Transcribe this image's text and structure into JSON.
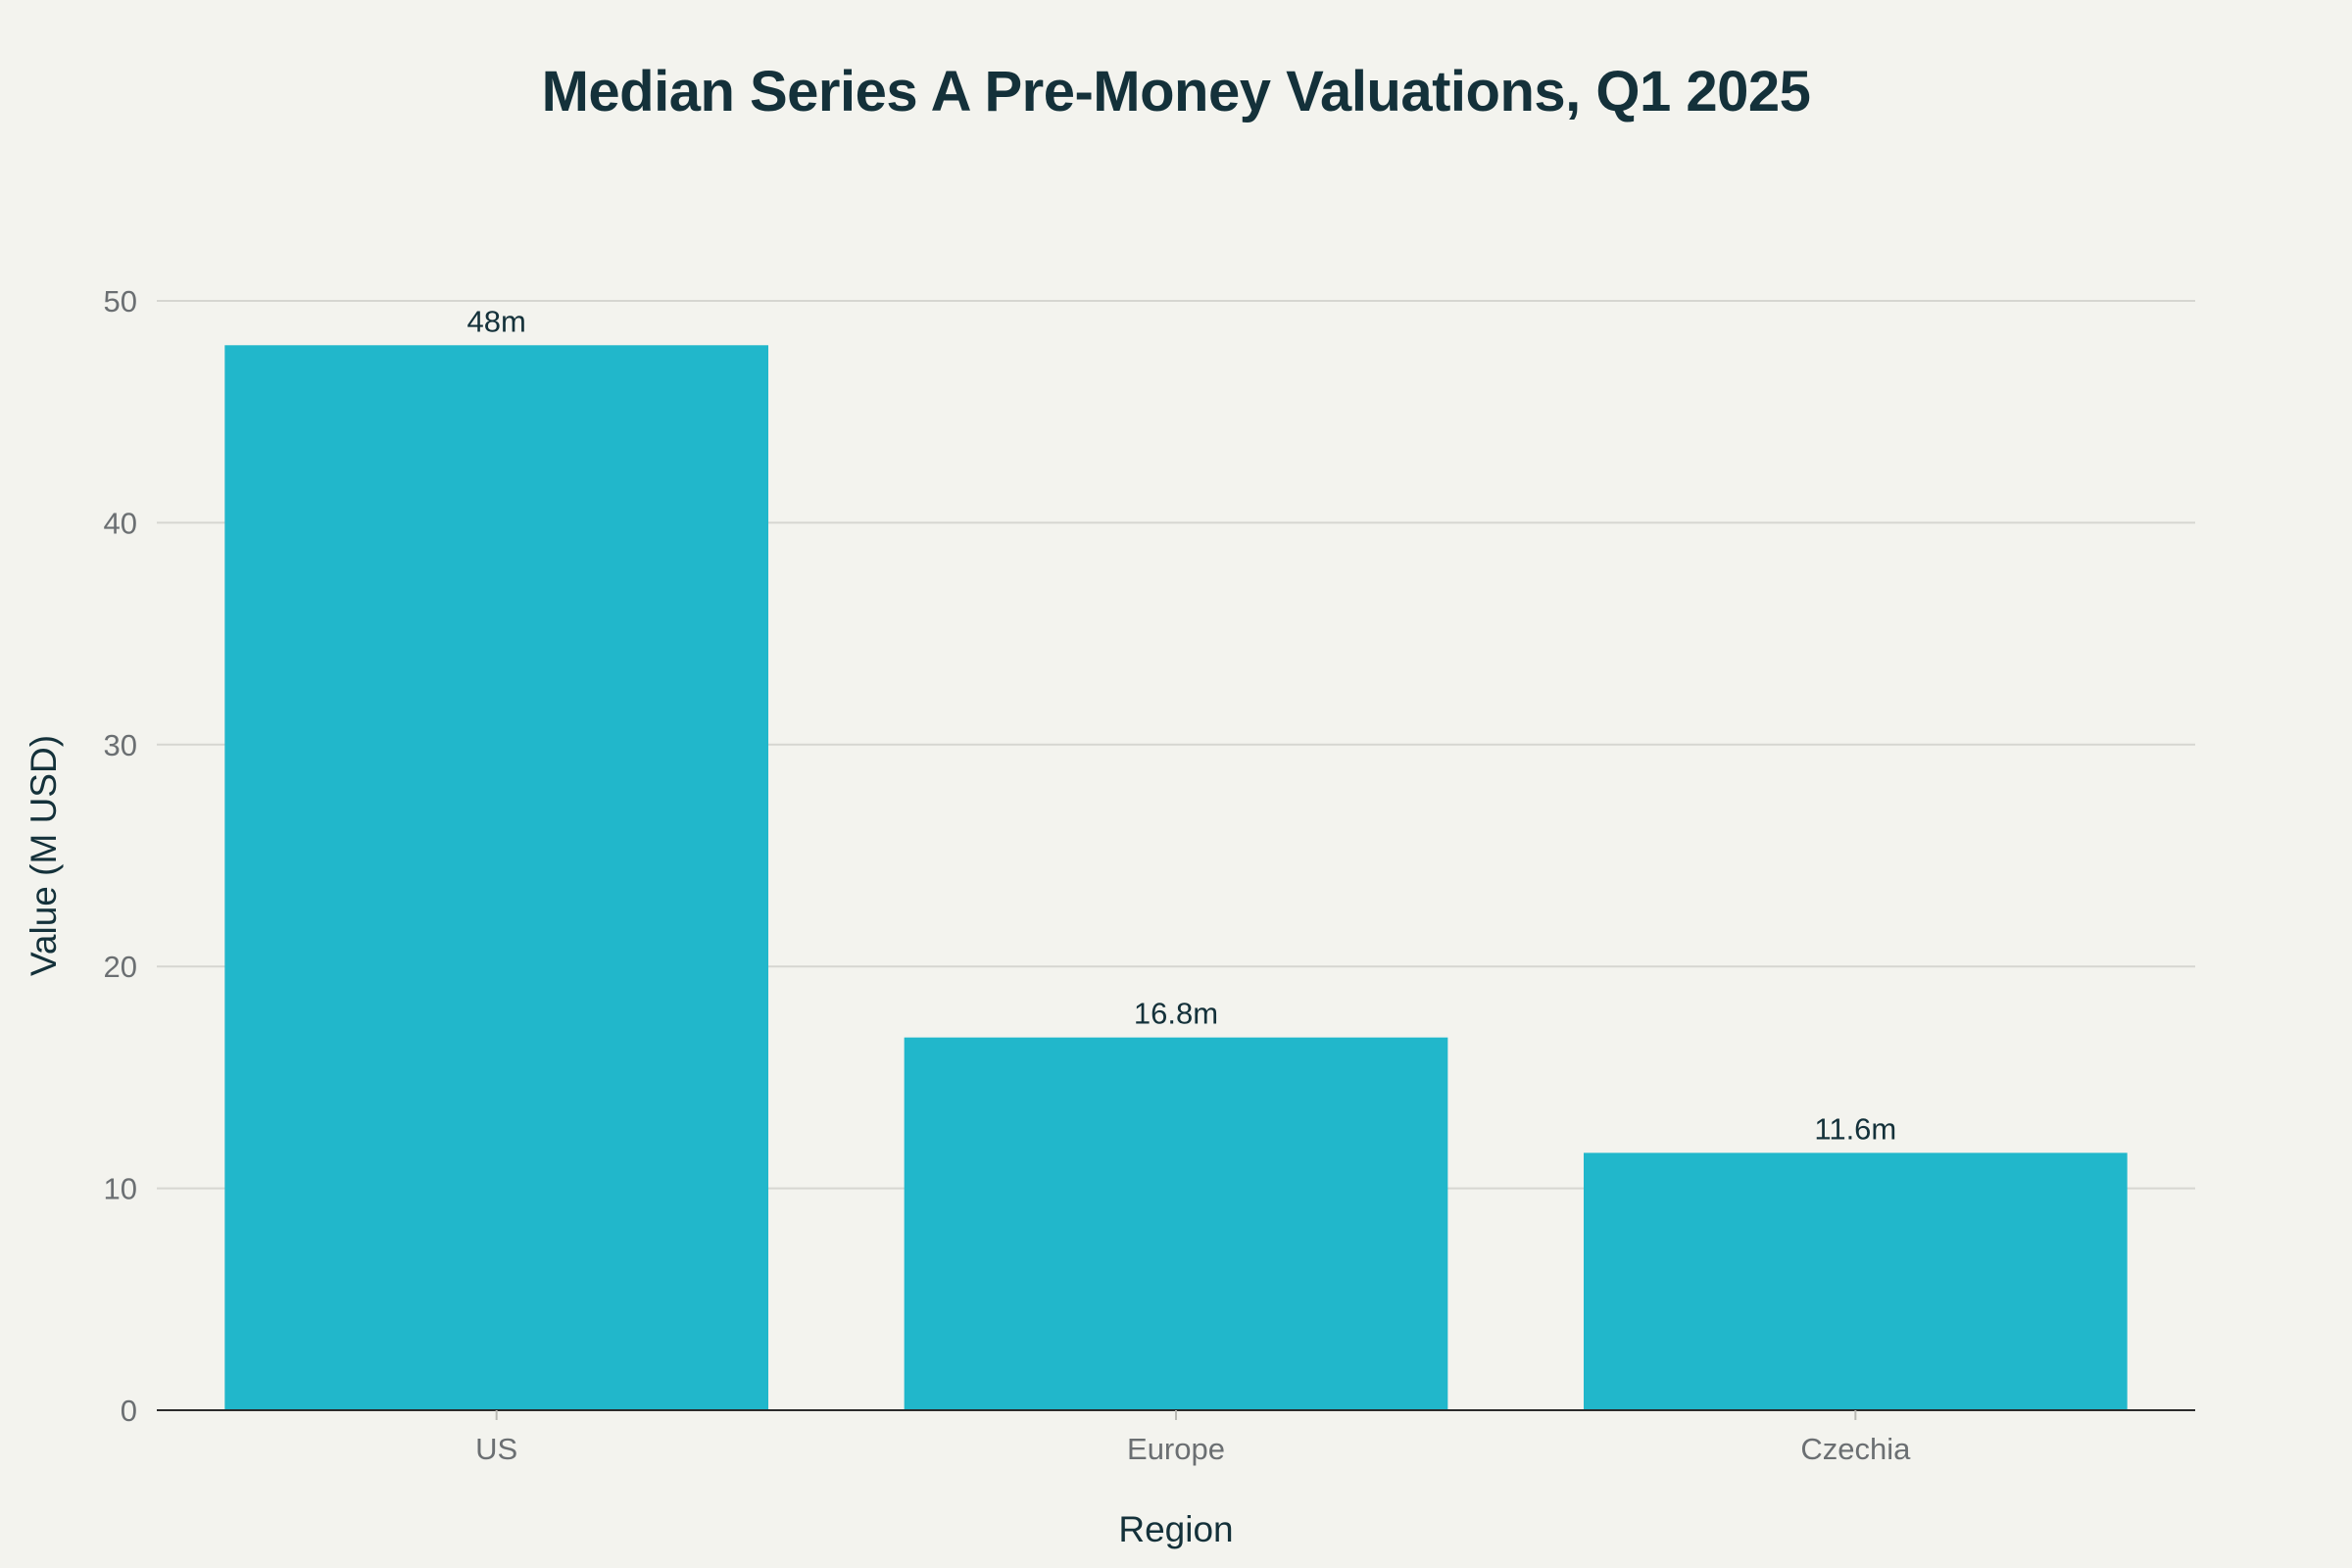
{
  "chart_data": {
    "type": "bar",
    "title": "Median Series A Pre-Money Valuations, Q1 2025",
    "xlabel": "Region",
    "ylabel": "Value (M USD)",
    "categories": [
      "US",
      "Europe",
      "Czechia"
    ],
    "values": [
      48,
      16.8,
      11.6
    ],
    "data_labels": [
      "48m",
      "16.8m",
      "11.6m"
    ],
    "ylim": [
      0,
      50
    ],
    "yticks": [
      0,
      10,
      20,
      30,
      40,
      50
    ],
    "grid": true,
    "legend": "none",
    "colors": {
      "bar": "#21b7cb",
      "background": "#f3f3ee",
      "text": "#14313a"
    }
  }
}
